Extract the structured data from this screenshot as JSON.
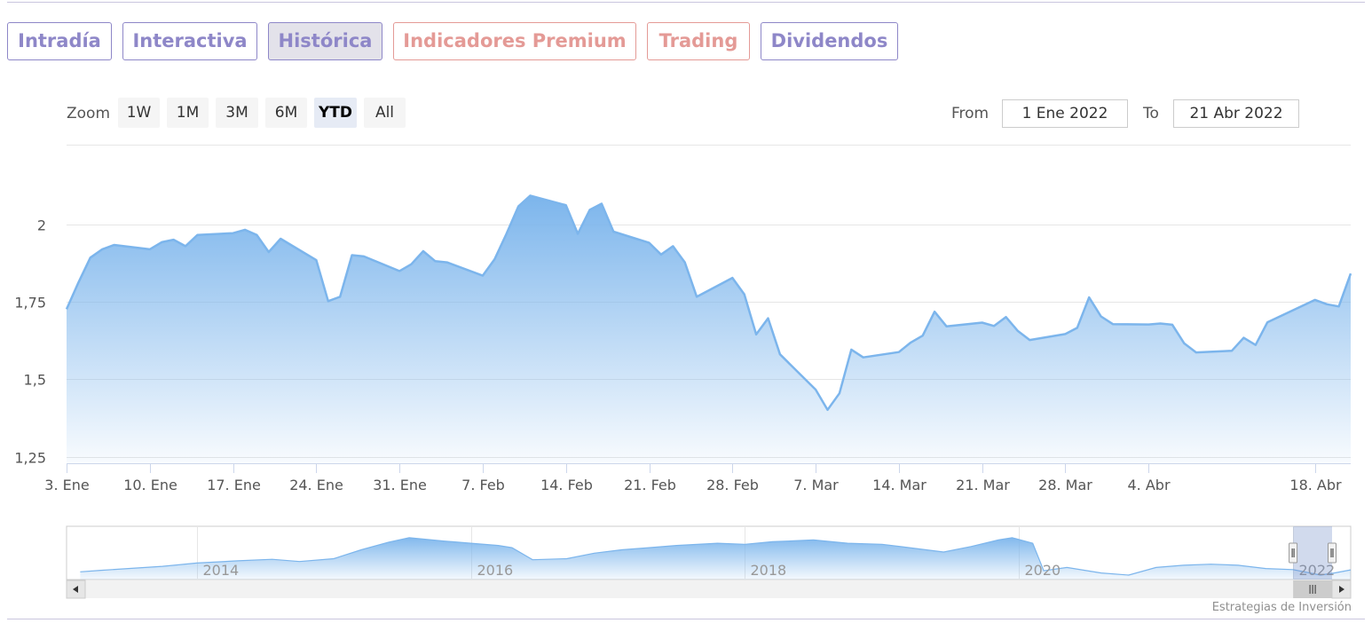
{
  "tabs": [
    {
      "label": "Intradía",
      "color": "#8e87c8",
      "active": false
    },
    {
      "label": "Interactiva",
      "color": "#8e87c8",
      "active": false
    },
    {
      "label": "Histórica",
      "color": "#8e87c8",
      "active": true
    },
    {
      "label": "Indicadores Premium",
      "color": "#e49a96",
      "active": false
    },
    {
      "label": "Trading",
      "color": "#e49a96",
      "active": false
    },
    {
      "label": "Dividendos",
      "color": "#8e87c8",
      "active": false
    }
  ],
  "range_selector": {
    "zoom_label": "Zoom",
    "buttons": [
      "1W",
      "1M",
      "3M",
      "6M",
      "YTD",
      "All"
    ],
    "selected": "YTD",
    "from_label": "From",
    "from_value": "1 Ene 2022",
    "to_label": "To",
    "to_value": "21 Abr 2022"
  },
  "chart_data": {
    "type": "area",
    "title": "",
    "xlabel": "",
    "ylabel": "",
    "line_color": "#7cb5ec",
    "x_start": "2022-01-03",
    "x_end": "2022-04-21",
    "x_tick_labels": [
      "3. Ene",
      "10. Ene",
      "17. Ene",
      "24. Ene",
      "31. Ene",
      "7. Feb",
      "14. Feb",
      "21. Feb",
      "28. Feb",
      "7. Mar",
      "14. Mar",
      "21. Mar",
      "28. Mar",
      "4. Abr",
      "18. Abr"
    ],
    "x_tick_dates": [
      "2022-01-03",
      "2022-01-10",
      "2022-01-17",
      "2022-01-24",
      "2022-01-31",
      "2022-02-07",
      "2022-02-14",
      "2022-02-21",
      "2022-02-28",
      "2022-03-07",
      "2022-03-14",
      "2022-03-21",
      "2022-03-28",
      "2022-04-04",
      "2022-04-18"
    ],
    "y_ticks": [
      1.25,
      1.5,
      1.75,
      2
    ],
    "y_tick_labels": [
      "1,25",
      "1,5",
      "1,75",
      "2"
    ],
    "ylim": [
      1.227,
      2.256
    ],
    "grid": true,
    "series": [
      {
        "values": [
          [
            "2022-01-03",
            1.726
          ],
          [
            "2022-01-04",
            1.812
          ],
          [
            "2022-01-05",
            1.892
          ],
          [
            "2022-01-06",
            1.919
          ],
          [
            "2022-01-07",
            1.933
          ],
          [
            "2022-01-10",
            1.919
          ],
          [
            "2022-01-11",
            1.942
          ],
          [
            "2022-01-12",
            1.95
          ],
          [
            "2022-01-13",
            1.929
          ],
          [
            "2022-01-14",
            1.965
          ],
          [
            "2022-01-17",
            1.971
          ],
          [
            "2022-01-18",
            1.982
          ],
          [
            "2022-01-19",
            1.965
          ],
          [
            "2022-01-20",
            1.91
          ],
          [
            "2022-01-21",
            1.953
          ],
          [
            "2022-01-24",
            1.884
          ],
          [
            "2022-01-25",
            1.752
          ],
          [
            "2022-01-26",
            1.766
          ],
          [
            "2022-01-27",
            1.9
          ],
          [
            "2022-01-28",
            1.896
          ],
          [
            "2022-01-31",
            1.849
          ],
          [
            "2022-02-01",
            1.871
          ],
          [
            "2022-02-02",
            1.913
          ],
          [
            "2022-02-03",
            1.881
          ],
          [
            "2022-02-04",
            1.877
          ],
          [
            "2022-02-07",
            1.834
          ],
          [
            "2022-02-08",
            1.887
          ],
          [
            "2022-02-09",
            1.969
          ],
          [
            "2022-02-10",
            2.057
          ],
          [
            "2022-02-11",
            2.092
          ],
          [
            "2022-02-14",
            2.061
          ],
          [
            "2022-02-15",
            1.969
          ],
          [
            "2022-02-16",
            2.046
          ],
          [
            "2022-02-17",
            2.066
          ],
          [
            "2022-02-18",
            1.976
          ],
          [
            "2022-02-21",
            1.94
          ],
          [
            "2022-02-22",
            1.902
          ],
          [
            "2022-02-23",
            1.929
          ],
          [
            "2022-02-24",
            1.877
          ],
          [
            "2022-02-25",
            1.766
          ],
          [
            "2022-02-28",
            1.827
          ],
          [
            "2022-03-01",
            1.774
          ],
          [
            "2022-03-02",
            1.645
          ],
          [
            "2022-03-03",
            1.697
          ],
          [
            "2022-03-04",
            1.581
          ],
          [
            "2022-03-07",
            1.467
          ],
          [
            "2022-03-08",
            1.402
          ],
          [
            "2022-03-09",
            1.455
          ],
          [
            "2022-03-10",
            1.596
          ],
          [
            "2022-03-11",
            1.571
          ],
          [
            "2022-03-14",
            1.588
          ],
          [
            "2022-03-15",
            1.619
          ],
          [
            "2022-03-16",
            1.641
          ],
          [
            "2022-03-17",
            1.718
          ],
          [
            "2022-03-18",
            1.671
          ],
          [
            "2022-03-21",
            1.683
          ],
          [
            "2022-03-22",
            1.672
          ],
          [
            "2022-03-23",
            1.701
          ],
          [
            "2022-03-24",
            1.656
          ],
          [
            "2022-03-25",
            1.627
          ],
          [
            "2022-03-28",
            1.646
          ],
          [
            "2022-03-29",
            1.666
          ],
          [
            "2022-03-30",
            1.764
          ],
          [
            "2022-03-31",
            1.703
          ],
          [
            "2022-04-01",
            1.678
          ],
          [
            "2022-04-04",
            1.677
          ],
          [
            "2022-04-05",
            1.68
          ],
          [
            "2022-04-06",
            1.676
          ],
          [
            "2022-04-07",
            1.616
          ],
          [
            "2022-04-08",
            1.587
          ],
          [
            "2022-04-11",
            1.592
          ],
          [
            "2022-04-12",
            1.634
          ],
          [
            "2022-04-13",
            1.611
          ],
          [
            "2022-04-14",
            1.684
          ],
          [
            "2022-04-18",
            1.756
          ],
          [
            "2022-04-19",
            1.742
          ],
          [
            "2022-04-20",
            1.735
          ],
          [
            "2022-04-21",
            1.841
          ]
        ]
      }
    ]
  },
  "navigator": {
    "x_tick_labels": [
      "2014",
      "2016",
      "2018",
      "2020",
      "2022"
    ],
    "x_tick_years": [
      2014,
      2016,
      2018,
      2020,
      2022
    ],
    "x_start_year": 2013.05,
    "x_end_year": 2022.42,
    "y_range": [
      1.4,
      3.7
    ],
    "selected_from_year": 2022.0,
    "selected_to_year": 2022.3,
    "series": [
      [
        2013.15,
        1.75
      ],
      [
        2013.3,
        1.82
      ],
      [
        2013.5,
        1.9
      ],
      [
        2013.75,
        2.0
      ],
      [
        2014.0,
        2.15
      ],
      [
        2014.3,
        2.25
      ],
      [
        2014.55,
        2.32
      ],
      [
        2014.75,
        2.22
      ],
      [
        2015.0,
        2.35
      ],
      [
        2015.2,
        2.75
      ],
      [
        2015.4,
        3.1
      ],
      [
        2015.55,
        3.3
      ],
      [
        2015.8,
        3.15
      ],
      [
        2016.0,
        3.05
      ],
      [
        2016.2,
        2.95
      ],
      [
        2016.3,
        2.85
      ],
      [
        2016.45,
        2.3
      ],
      [
        2016.7,
        2.35
      ],
      [
        2016.9,
        2.6
      ],
      [
        2017.1,
        2.75
      ],
      [
        2017.3,
        2.85
      ],
      [
        2017.5,
        2.95
      ],
      [
        2017.8,
        3.05
      ],
      [
        2018.0,
        3.0
      ],
      [
        2018.2,
        3.12
      ],
      [
        2018.5,
        3.2
      ],
      [
        2018.75,
        3.05
      ],
      [
        2019.0,
        3.0
      ],
      [
        2019.2,
        2.85
      ],
      [
        2019.45,
        2.65
      ],
      [
        2019.65,
        2.9
      ],
      [
        2019.85,
        3.2
      ],
      [
        2019.95,
        3.3
      ],
      [
        2020.1,
        3.05
      ],
      [
        2020.18,
        1.8
      ],
      [
        2020.35,
        1.95
      ],
      [
        2020.6,
        1.7
      ],
      [
        2020.8,
        1.6
      ],
      [
        2021.0,
        1.95
      ],
      [
        2021.2,
        2.05
      ],
      [
        2021.4,
        2.1
      ],
      [
        2021.6,
        2.05
      ],
      [
        2021.8,
        1.9
      ],
      [
        2022.0,
        1.85
      ],
      [
        2022.2,
        1.6
      ],
      [
        2022.3,
        1.7
      ],
      [
        2022.42,
        1.84
      ]
    ]
  },
  "credits": "Estrategias de Inversión"
}
